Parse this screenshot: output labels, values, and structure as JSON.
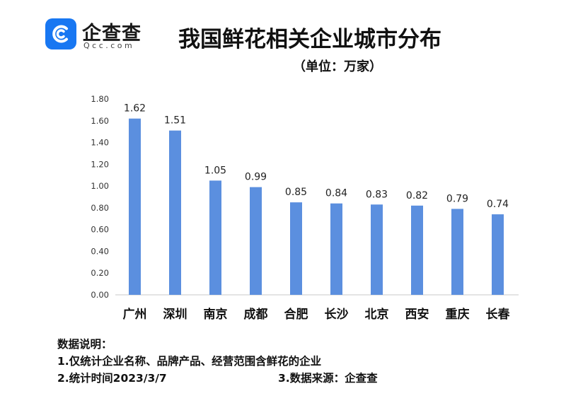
{
  "logo": {
    "name": "企查查",
    "domain": "Qcc.com",
    "brand_color": "#1877f2"
  },
  "header": {
    "title": "我国鲜花相关企业城市分布",
    "subtitle": "（单位：万家）"
  },
  "chart_data": {
    "type": "bar",
    "title": "我国鲜花相关企业城市分布",
    "unit": "（单位：万家）",
    "categories": [
      "广州",
      "深圳",
      "南京",
      "成都",
      "合肥",
      "长沙",
      "北京",
      "西安",
      "重庆",
      "长春"
    ],
    "values": [
      1.62,
      1.51,
      1.05,
      0.99,
      0.85,
      0.84,
      0.83,
      0.82,
      0.79,
      0.74
    ],
    "value_labels": [
      "1.62",
      "1.51",
      "1.05",
      "0.99",
      "0.85",
      "0.84",
      "0.83",
      "0.82",
      "0.79",
      "0.74"
    ],
    "ylim": [
      0,
      1.8
    ],
    "yticks": [
      "0.00",
      "0.20",
      "0.40",
      "0.60",
      "0.80",
      "1.00",
      "1.20",
      "1.40",
      "1.60",
      "1.80"
    ],
    "bar_color": "#5b8fdf",
    "grid": false,
    "legend": "none"
  },
  "notes": {
    "heading": "数据说明：",
    "line1": "1.仅统计企业名称、品牌产品、经营范围含鲜花的企业",
    "line2": "2.统计时间2023/3/7",
    "source": "3.数据来源：企查查"
  }
}
